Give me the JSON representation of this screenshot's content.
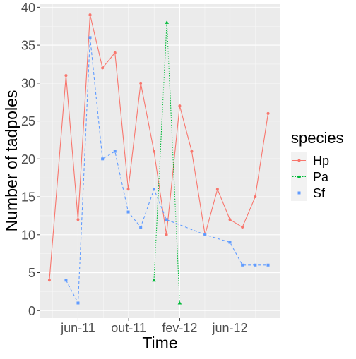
{
  "chart_data": {
    "type": "line",
    "xlabel": "Time",
    "ylabel": "Number of tadpoles",
    "x_tick_labels": [
      "jun-11",
      "out-11",
      "fev-12",
      "jun-12"
    ],
    "x_tick_dates": [
      "2011-06-01",
      "2011-10-01",
      "2012-02-01",
      "2012-06-01"
    ],
    "xlim": [
      "2011-03-02",
      "2012-09-29"
    ],
    "y_ticks": [
      0,
      5,
      10,
      15,
      20,
      25,
      30,
      35,
      40
    ],
    "ylim": [
      -1,
      40.5
    ],
    "grid": true,
    "legend": {
      "title": "species",
      "placement": "right"
    },
    "series": [
      {
        "name": "Hp",
        "color": "#F8766D",
        "line_style": "solid",
        "marker": "circle",
        "points": [
          {
            "x": "2011-03-24",
            "y": 4
          },
          {
            "x": "2011-05-03",
            "y": 31
          },
          {
            "x": "2011-06-01",
            "y": 12
          },
          {
            "x": "2011-06-30",
            "y": 39
          },
          {
            "x": "2011-07-30",
            "y": 32
          },
          {
            "x": "2011-08-29",
            "y": 34
          },
          {
            "x": "2011-09-30",
            "y": 16
          },
          {
            "x": "2011-10-30",
            "y": 30
          },
          {
            "x": "2011-12-01",
            "y": 21
          },
          {
            "x": "2011-12-31",
            "y": 10
          },
          {
            "x": "2012-02-01",
            "y": 27
          },
          {
            "x": "2012-03-01",
            "y": 21
          },
          {
            "x": "2012-04-02",
            "y": 10
          },
          {
            "x": "2012-05-02",
            "y": 16
          },
          {
            "x": "2012-06-01",
            "y": 12
          },
          {
            "x": "2012-07-01",
            "y": 11
          },
          {
            "x": "2012-08-01",
            "y": 15
          },
          {
            "x": "2012-09-01",
            "y": 26
          }
        ]
      },
      {
        "name": "Pa",
        "color": "#00BA38",
        "line_style": "dotted",
        "marker": "triangle",
        "points": [
          {
            "x": "2011-12-01",
            "y": 4
          },
          {
            "x": "2012-01-01",
            "y": 38
          },
          {
            "x": "2012-02-01",
            "y": 1
          }
        ]
      },
      {
        "name": "Sf",
        "color": "#619CFF",
        "line_style": "dashed",
        "marker": "square",
        "points": [
          {
            "x": "2011-05-03",
            "y": 4
          },
          {
            "x": "2011-06-01",
            "y": 1
          },
          {
            "x": "2011-06-30",
            "y": 36
          },
          {
            "x": "2011-07-30",
            "y": 20
          },
          {
            "x": "2011-08-29",
            "y": 21
          },
          {
            "x": "2011-09-30",
            "y": 13
          },
          {
            "x": "2011-10-30",
            "y": 11
          },
          {
            "x": "2011-12-01",
            "y": 16
          },
          {
            "x": "2011-12-31",
            "y": 12
          },
          {
            "x": "2012-04-02",
            "y": 10
          },
          {
            "x": "2012-06-01",
            "y": 9
          },
          {
            "x": "2012-07-01",
            "y": 6
          },
          {
            "x": "2012-08-01",
            "y": 6
          },
          {
            "x": "2012-09-01",
            "y": 6
          }
        ]
      }
    ]
  }
}
